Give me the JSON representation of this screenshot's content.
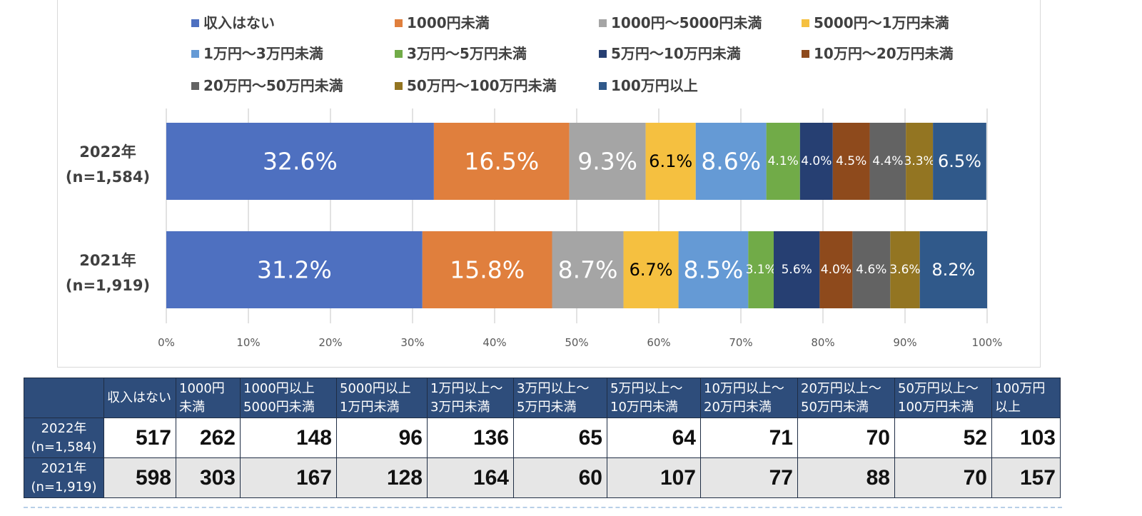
{
  "chart_data": {
    "type": "bar",
    "orientation": "horizontal",
    "stacked": true,
    "percent": true,
    "categories": [
      "2022年\n(n=1,584)",
      "2021年\n(n=1,919)"
    ],
    "category_lines": [
      [
        "2022年",
        "(n=1,584)"
      ],
      [
        "2021年",
        "(n=1,919)"
      ]
    ],
    "series": [
      {
        "name": "収入はない",
        "color": "#4e70c0",
        "label_color": "#ffffff",
        "values": [
          32.6,
          31.2
        ],
        "labels": [
          "32.6%",
          "31.2%"
        ],
        "label_size": "large"
      },
      {
        "name": "1000円未満",
        "color": "#e07f3d",
        "label_color": "#ffffff",
        "values": [
          16.5,
          15.8
        ],
        "labels": [
          "16.5%",
          "15.8%"
        ],
        "label_size": "large"
      },
      {
        "name": "1000円～5000円未満",
        "color": "#a5a5a5",
        "label_color": "#ffffff",
        "values": [
          9.3,
          8.7
        ],
        "labels": [
          "9.3%",
          "8.7%"
        ],
        "label_size": "large"
      },
      {
        "name": "5000円～1万円未満",
        "color": "#f5c040",
        "label_color": "#000000",
        "values": [
          6.1,
          6.7
        ],
        "labels": [
          "6.1%",
          "6.7%"
        ],
        "label_size": "medium"
      },
      {
        "name": "1万円～3万円未満",
        "color": "#659ad5",
        "label_color": "#ffffff",
        "values": [
          8.6,
          8.5
        ],
        "labels": [
          "8.6%",
          "8.5%"
        ],
        "label_size": "large"
      },
      {
        "name": "3万円～5万円未満",
        "color": "#71ab48",
        "label_color": "#ffffff",
        "values": [
          4.1,
          3.1
        ],
        "labels": [
          "4.1%",
          "3.1%"
        ],
        "label_size": "small"
      },
      {
        "name": "5万円～10万円未満",
        "color": "#263f72",
        "label_color": "#ffffff",
        "values": [
          4.0,
          5.6
        ],
        "labels": [
          "4.0%",
          "5.6%"
        ],
        "label_size": "small"
      },
      {
        "name": "10万円～20万円未満",
        "color": "#8e4a1c",
        "label_color": "#ffffff",
        "values": [
          4.5,
          4.0
        ],
        "labels": [
          "4.5%",
          "4.0%"
        ],
        "label_size": "small"
      },
      {
        "name": "20万円～50万円未満",
        "color": "#636363",
        "label_color": "#ffffff",
        "values": [
          4.4,
          4.6
        ],
        "labels": [
          "4.4%",
          "4.6%"
        ],
        "label_size": "small"
      },
      {
        "name": "50万円～100万円未満",
        "color": "#937522",
        "label_color": "#ffffff",
        "values": [
          3.3,
          3.6
        ],
        "labels": [
          "3.3%",
          "3.6%"
        ],
        "label_size": "small"
      },
      {
        "name": "100万円以上",
        "color": "#30598a",
        "label_color": "#ffffff",
        "values": [
          6.5,
          8.2
        ],
        "labels": [
          "6.5%",
          "8.2%"
        ],
        "label_size": "medium"
      }
    ],
    "xlim": [
      0,
      100
    ],
    "xticks": [
      "0%",
      "10%",
      "20%",
      "30%",
      "40%",
      "50%",
      "60%",
      "70%",
      "80%",
      "90%",
      "100%"
    ],
    "grid": true,
    "legend_position": "top",
    "title": "",
    "xlabel": "",
    "ylabel": ""
  },
  "table": {
    "headers": [
      [
        "収入はない"
      ],
      [
        "1000円",
        "未満"
      ],
      [
        "1000円以上",
        "5000円未満"
      ],
      [
        "5000円以上",
        "1万円未満"
      ],
      [
        "1万円以上～",
        "3万円未満"
      ],
      [
        "3万円以上～",
        "5万円未満"
      ],
      [
        "5万円以上～",
        "10万円未満"
      ],
      [
        "10万円以上～",
        "20万円未満"
      ],
      [
        "20万円以上～",
        "50万円未満"
      ],
      [
        "50万円以上～",
        "100万円未満"
      ],
      [
        "100万円",
        "以上"
      ]
    ],
    "rows": [
      {
        "label": [
          "2022年",
          "(n=1,584)"
        ],
        "values": [
          "517",
          "262",
          "148",
          "96",
          "136",
          "65",
          "64",
          "71",
          "70",
          "52",
          "103"
        ]
      },
      {
        "label": [
          "2021年",
          "(n=1,919)"
        ],
        "values": [
          "598",
          "303",
          "167",
          "128",
          "164",
          "60",
          "107",
          "77",
          "88",
          "70",
          "157"
        ]
      }
    ]
  }
}
